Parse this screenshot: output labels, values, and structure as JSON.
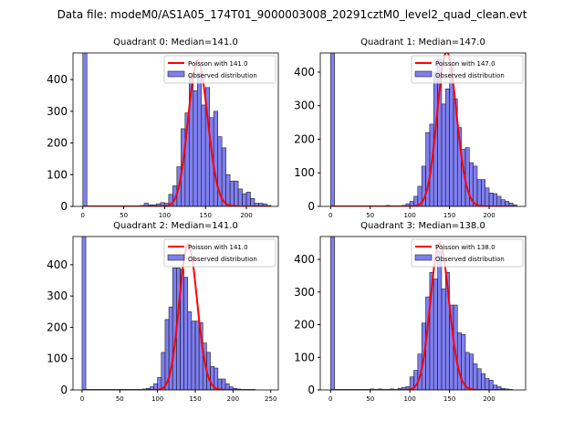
{
  "suptitle": "Data file: modeM0/AS1A05_174T01_9000003008_20291cztM0_level2_quad_clean.evt",
  "chart_data": [
    {
      "type": "bar",
      "title": "Quadrant 0: Median=141.0",
      "median": 141.0,
      "poisson_peak": 460,
      "legend": [
        "Poisson with 141.0",
        "Observed distribution"
      ],
      "legend_position": "top-right",
      "xlim": [
        -12,
        239
      ],
      "ylim": [
        0,
        484
      ],
      "xticks": [
        0,
        50,
        100,
        150,
        200
      ],
      "yticks": [
        0,
        100,
        200,
        300,
        400
      ],
      "bin_width": 5,
      "bins": [
        [
          0,
          1000
        ],
        [
          70,
          3
        ],
        [
          75,
          10
        ],
        [
          80,
          5
        ],
        [
          85,
          5
        ],
        [
          90,
          8
        ],
        [
          95,
          12
        ],
        [
          100,
          10
        ],
        [
          105,
          38
        ],
        [
          110,
          65
        ],
        [
          115,
          125
        ],
        [
          120,
          245
        ],
        [
          125,
          295
        ],
        [
          130,
          410
        ],
        [
          135,
          365
        ],
        [
          140,
          420
        ],
        [
          145,
          320
        ],
        [
          150,
          375
        ],
        [
          155,
          280
        ],
        [
          160,
          300
        ],
        [
          165,
          220
        ],
        [
          170,
          185
        ],
        [
          175,
          100
        ],
        [
          180,
          80
        ],
        [
          185,
          80
        ],
        [
          190,
          55
        ],
        [
          195,
          40
        ],
        [
          200,
          45
        ],
        [
          205,
          25
        ],
        [
          210,
          10
        ],
        [
          215,
          10
        ],
        [
          220,
          8
        ],
        [
          225,
          3
        ]
      ]
    },
    {
      "type": "bar",
      "title": "Quadrant 1: Median=147.0",
      "median": 147.0,
      "poisson_peak": 460,
      "legend": [
        "Poisson with 147.0",
        "Observed distribution"
      ],
      "legend_position": "top-right",
      "xlim": [
        -13,
        246
      ],
      "ylim": [
        0,
        457
      ],
      "xticks": [
        0,
        50,
        100,
        150,
        200
      ],
      "yticks": [
        0,
        100,
        200,
        300,
        400
      ],
      "bin_width": 5,
      "bins": [
        [
          0,
          1000
        ],
        [
          70,
          3
        ],
        [
          80,
          2
        ],
        [
          90,
          3
        ],
        [
          95,
          8
        ],
        [
          100,
          15
        ],
        [
          105,
          30
        ],
        [
          110,
          60
        ],
        [
          115,
          120
        ],
        [
          120,
          220
        ],
        [
          125,
          245
        ],
        [
          130,
          400
        ],
        [
          135,
          440
        ],
        [
          140,
          305
        ],
        [
          145,
          350
        ],
        [
          150,
          410
        ],
        [
          155,
          320
        ],
        [
          160,
          235
        ],
        [
          165,
          170
        ],
        [
          170,
          175
        ],
        [
          175,
          130
        ],
        [
          180,
          120
        ],
        [
          185,
          80
        ],
        [
          190,
          80
        ],
        [
          195,
          55
        ],
        [
          200,
          40
        ],
        [
          205,
          38
        ],
        [
          210,
          30
        ],
        [
          215,
          20
        ],
        [
          220,
          15
        ],
        [
          225,
          10
        ],
        [
          230,
          5
        ]
      ]
    },
    {
      "type": "bar",
      "title": "Quadrant 2: Median=141.0",
      "median": 141.0,
      "poisson_peak": 465,
      "legend": [
        "Poisson with 141.0",
        "Observed distribution"
      ],
      "legend_position": "top-right",
      "xlim": [
        -12,
        260
      ],
      "ylim": [
        0,
        490
      ],
      "xticks": [
        0,
        50,
        100,
        150,
        200,
        250
      ],
      "yticks": [
        0,
        100,
        200,
        300,
        400
      ],
      "bin_width": 5,
      "bins": [
        [
          0,
          1000
        ],
        [
          80,
          3
        ],
        [
          85,
          5
        ],
        [
          90,
          10
        ],
        [
          95,
          20
        ],
        [
          100,
          40
        ],
        [
          105,
          120
        ],
        [
          110,
          225
        ],
        [
          115,
          265
        ],
        [
          120,
          390
        ],
        [
          125,
          390
        ],
        [
          130,
          385
        ],
        [
          135,
          360
        ],
        [
          140,
          250
        ],
        [
          145,
          220
        ],
        [
          150,
          220
        ],
        [
          155,
          215
        ],
        [
          160,
          150
        ],
        [
          165,
          120
        ],
        [
          170,
          75
        ],
        [
          175,
          70
        ],
        [
          180,
          35
        ],
        [
          185,
          35
        ],
        [
          190,
          20
        ],
        [
          195,
          10
        ],
        [
          200,
          5
        ],
        [
          205,
          3
        ]
      ]
    },
    {
      "type": "bar",
      "title": "Quadrant 3: Median=138.0",
      "median": 138.0,
      "poisson_peak": 450,
      "legend": [
        "Poisson with 138.0",
        "Observed distribution"
      ],
      "legend_position": "top-right",
      "xlim": [
        -13,
        246
      ],
      "ylim": [
        0,
        470
      ],
      "xticks": [
        0,
        50,
        100,
        150,
        200
      ],
      "yticks": [
        0,
        100,
        200,
        300,
        400
      ],
      "bin_width": 5,
      "bins": [
        [
          0,
          1000
        ],
        [
          50,
          3
        ],
        [
          60,
          3
        ],
        [
          75,
          3
        ],
        [
          85,
          5
        ],
        [
          90,
          8
        ],
        [
          95,
          10
        ],
        [
          100,
          40
        ],
        [
          105,
          60
        ],
        [
          110,
          110
        ],
        [
          115,
          205
        ],
        [
          120,
          285
        ],
        [
          125,
          360
        ],
        [
          130,
          340
        ],
        [
          135,
          425
        ],
        [
          140,
          310
        ],
        [
          145,
          360
        ],
        [
          150,
          260
        ],
        [
          155,
          260
        ],
        [
          160,
          175
        ],
        [
          165,
          170
        ],
        [
          170,
          115
        ],
        [
          175,
          110
        ],
        [
          180,
          80
        ],
        [
          185,
          65
        ],
        [
          190,
          50
        ],
        [
          195,
          35
        ],
        [
          200,
          30
        ],
        [
          205,
          15
        ],
        [
          210,
          10
        ],
        [
          215,
          5
        ],
        [
          220,
          3
        ]
      ]
    }
  ]
}
